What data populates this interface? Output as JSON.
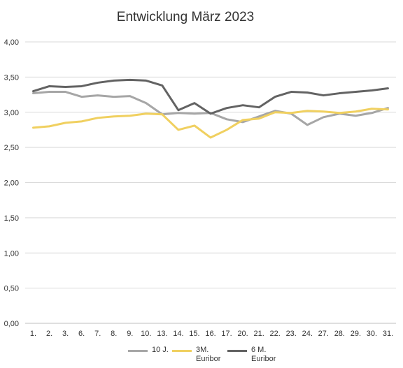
{
  "chart_data": {
    "type": "line",
    "title": "Entwicklung März 2023",
    "xlabel": "",
    "ylabel": "",
    "ylim": [
      0,
      4
    ],
    "yticks": [
      "0,00",
      "0,50",
      "1,00",
      "1,50",
      "2,00",
      "2,50",
      "3,00",
      "3,50",
      "4,00"
    ],
    "grid": true,
    "legend": "bottom",
    "categories": [
      "1.",
      "2.",
      "3.",
      "6.",
      "7.",
      "8.",
      "9.",
      "10.",
      "13.",
      "14.",
      "15.",
      "16.",
      "17.",
      "20.",
      "21.",
      "22.",
      "23.",
      "24.",
      "27.",
      "28.",
      "29.",
      "30.",
      "31."
    ],
    "series": [
      {
        "name": "10 J.",
        "color": "#a6a6a6",
        "values": [
          3.27,
          3.29,
          3.29,
          3.22,
          3.24,
          3.22,
          3.23,
          3.13,
          2.97,
          2.99,
          2.98,
          2.99,
          2.9,
          2.86,
          2.94,
          3.02,
          2.98,
          2.82,
          2.93,
          2.98,
          2.95,
          2.99,
          3.06
        ]
      },
      {
        "name": "3M. Euribor",
        "color": "#f0d060",
        "values": [
          2.78,
          2.8,
          2.85,
          2.87,
          2.92,
          2.94,
          2.95,
          2.98,
          2.97,
          2.75,
          2.81,
          2.64,
          2.75,
          2.89,
          2.91,
          3.0,
          2.99,
          3.02,
          3.01,
          2.99,
          3.01,
          3.05,
          3.04
        ]
      },
      {
        "name": "6 M. Euribor",
        "color": "#636363",
        "values": [
          3.3,
          3.37,
          3.36,
          3.37,
          3.42,
          3.45,
          3.46,
          3.45,
          3.38,
          3.03,
          3.13,
          2.98,
          3.06,
          3.1,
          3.07,
          3.22,
          3.29,
          3.28,
          3.24,
          3.27,
          3.29,
          3.31,
          3.34
        ]
      }
    ]
  }
}
